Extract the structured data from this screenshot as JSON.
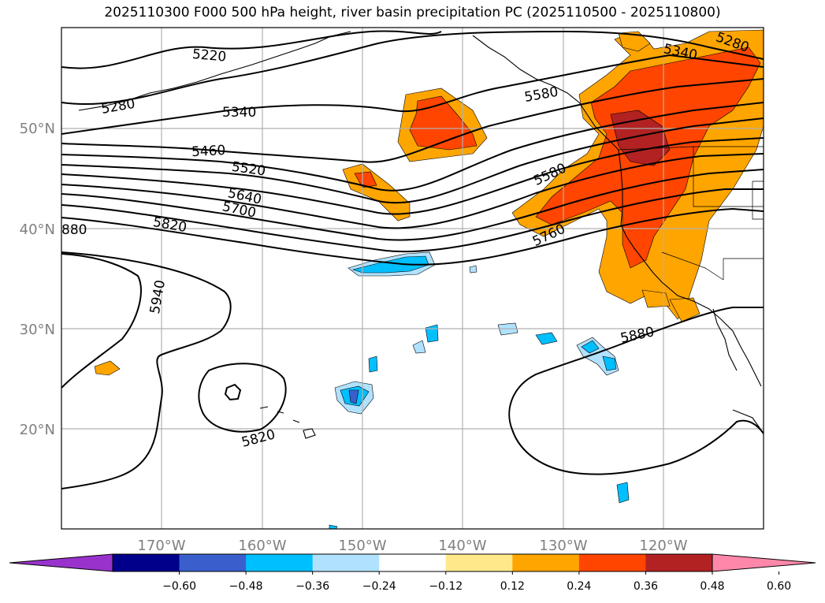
{
  "title": "2025110300 F000 500 hPa height, river basin precipitation PC (2025110500 - 2025110800)",
  "map": {
    "lon_range": [
      -180,
      -110
    ],
    "lat_range": [
      10,
      60
    ],
    "gridlines": true,
    "lat_ticks": [
      {
        "value": 50,
        "label": "50°N"
      },
      {
        "value": 40,
        "label": "40°N"
      },
      {
        "value": 30,
        "label": "30°N"
      },
      {
        "value": 20,
        "label": "20°N"
      }
    ],
    "lon_ticks": [
      {
        "value": -170,
        "label": "170°W"
      },
      {
        "value": -160,
        "label": "160°W"
      },
      {
        "value": -150,
        "label": "150°W"
      },
      {
        "value": -140,
        "label": "140°W"
      },
      {
        "value": -130,
        "label": "130°W"
      },
      {
        "value": -120,
        "label": "120°W"
      }
    ],
    "contour_labels": [
      "5220",
      "5280",
      "5340",
      "5460",
      "5520",
      "5580",
      "5640",
      "5700",
      "5760",
      "5820",
      "5880",
      "5940",
      "880"
    ]
  },
  "colorbar": {
    "extend": "both",
    "colors": [
      "#9932cc",
      "#00008b",
      "#3a5fcd",
      "#00bfff",
      "#b0e2ff",
      "#ffffff",
      "#ffe88a",
      "#ffa500",
      "#ff4500",
      "#b22222",
      "#ff88aa"
    ],
    "tick_labels": [
      "−0.60",
      "−0.48",
      "−0.36",
      "−0.24",
      "−0.12",
      "0.12",
      "0.24",
      "0.36",
      "0.48",
      "0.60"
    ]
  }
}
